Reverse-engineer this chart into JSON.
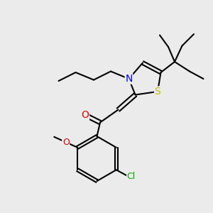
{
  "bg_color": "#ebebeb",
  "bond_color": "#000000",
  "bond_lw": 1.5,
  "atom_colors": {
    "N": "#0000ee",
    "S": "#bbbb00",
    "O": "#dd0000",
    "Cl": "#00aa00",
    "C": "#000000"
  },
  "font_size": 9,
  "font_size_small": 7.5
}
